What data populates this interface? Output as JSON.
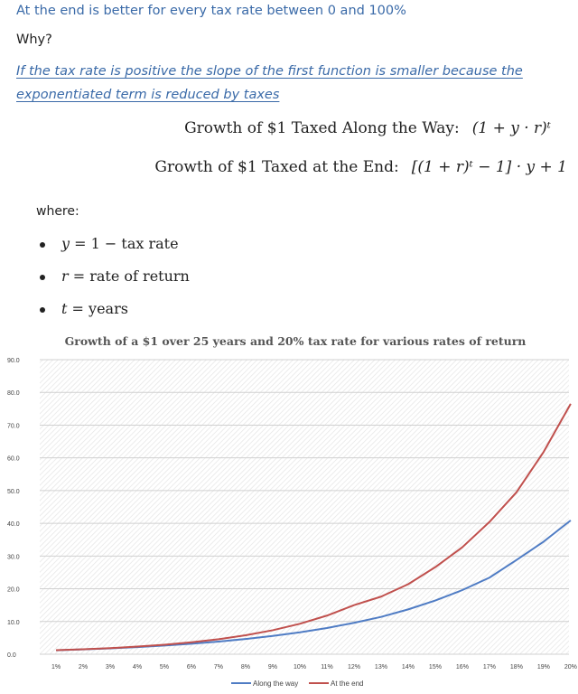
{
  "heading": "At the end is better for every tax rate between 0 and 100%",
  "why": "Why?",
  "note": "If the tax rate is positive the slope of the first function is smaller because the exponentiated term is reduced by taxes",
  "formulas": [
    {
      "label": "Growth of $1 Taxed Along the Way:",
      "expr": "(1 + y · r)ᵗ"
    },
    {
      "label": "Growth of $1 Taxed at the End:",
      "expr": "[(1 + r)ᵗ − 1] · y + 1"
    }
  ],
  "where": "where:",
  "definitions": [
    {
      "var": "y",
      "text": "= 1 − tax rate"
    },
    {
      "var": "r",
      "text": "= rate of return"
    },
    {
      "var": "t",
      "text": "= years"
    }
  ],
  "chart_data": {
    "type": "line",
    "title": "Growth of a $1 over 25 years and 20% tax rate for various rates of return",
    "categories": [
      "1%",
      "2%",
      "3%",
      "4%",
      "5%",
      "6%",
      "7%",
      "8%",
      "9%",
      "10%",
      "11%",
      "12%",
      "13%",
      "14%",
      "15%",
      "16%",
      "17%",
      "18%",
      "19%",
      "20%"
    ],
    "ylim": [
      0,
      90
    ],
    "yticks": [
      "0.0",
      "10.0",
      "20.0",
      "30.0",
      "40.0",
      "50.0",
      "60.0",
      "70.0",
      "80.0",
      "90.0"
    ],
    "series": [
      {
        "name": "Along the way",
        "color": "#4f7cc4",
        "values": [
          1.22,
          1.48,
          1.8,
          2.16,
          2.67,
          3.22,
          3.88,
          4.66,
          5.6,
          6.7,
          8.0,
          9.6,
          11.4,
          13.7,
          16.4,
          19.6,
          23.4,
          28.8,
          34.4,
          40.9
        ]
      },
      {
        "name": "At the end",
        "color": "#c0504d",
        "values": [
          1.23,
          1.51,
          1.87,
          2.33,
          2.91,
          3.65,
          4.59,
          5.79,
          7.33,
          9.3,
          11.8,
          15.0,
          17.6,
          21.4,
          26.6,
          32.7,
          40.4,
          49.5,
          61.8,
          76.5
        ]
      }
    ],
    "legend": "bottom",
    "grid": true
  }
}
